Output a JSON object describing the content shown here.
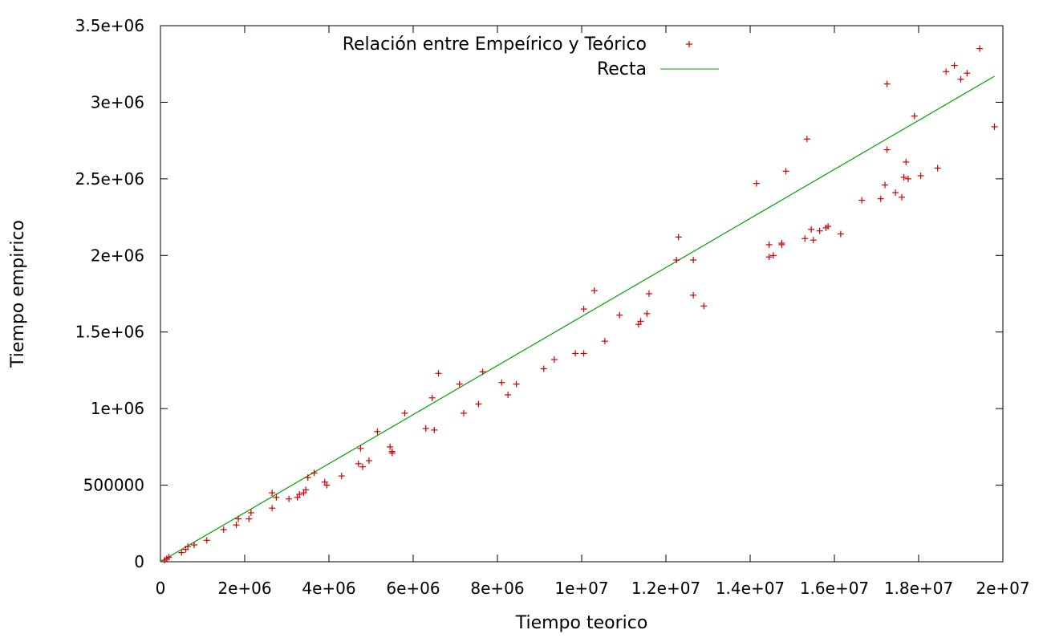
{
  "chart_data": {
    "type": "scatter",
    "xlabel": "Tiempo teorico",
    "ylabel": "Tiempo empirico",
    "xlim": [
      0,
      20000000
    ],
    "ylim": [
      0,
      3500000
    ],
    "x_ticks": [
      0,
      2000000,
      4000000,
      6000000,
      8000000,
      10000000,
      12000000,
      14000000,
      16000000,
      18000000,
      20000000
    ],
    "x_tick_labels": [
      "0",
      "2e+06",
      "4e+06",
      "6e+06",
      "8e+06",
      "1e+07",
      "1.2e+07",
      "1.4e+07",
      "1.6e+07",
      "1.8e+07",
      "2e+07"
    ],
    "y_ticks": [
      0,
      500000,
      1000000,
      1500000,
      2000000,
      2500000,
      3000000,
      3500000
    ],
    "y_tick_labels": [
      "0",
      "500000",
      "1e+06",
      "1.5e+06",
      "2e+06",
      "2.5e+06",
      "3e+06",
      "3.5e+06"
    ],
    "grid": false,
    "legend_position": "top-right",
    "series": [
      {
        "name": "Relación entre Empeírico y Teórico",
        "kind": "points",
        "color": "#cc0000",
        "points": [
          [
            100000,
            10000
          ],
          [
            150000,
            20000
          ],
          [
            200000,
            30000
          ],
          [
            500000,
            60000
          ],
          [
            600000,
            80000
          ],
          [
            650000,
            100000
          ],
          [
            800000,
            110000
          ],
          [
            1100000,
            140000
          ],
          [
            1500000,
            210000
          ],
          [
            1800000,
            240000
          ],
          [
            1850000,
            280000
          ],
          [
            2100000,
            280000
          ],
          [
            2150000,
            320000
          ],
          [
            2650000,
            350000
          ],
          [
            2650000,
            450000
          ],
          [
            2750000,
            420000
          ],
          [
            3050000,
            410000
          ],
          [
            3250000,
            420000
          ],
          [
            3300000,
            440000
          ],
          [
            3400000,
            450000
          ],
          [
            3450000,
            470000
          ],
          [
            3500000,
            550000
          ],
          [
            3650000,
            580000
          ],
          [
            3900000,
            520000
          ],
          [
            3950000,
            500000
          ],
          [
            4300000,
            560000
          ],
          [
            4700000,
            640000
          ],
          [
            4750000,
            740000
          ],
          [
            4800000,
            620000
          ],
          [
            4950000,
            660000
          ],
          [
            5150000,
            850000
          ],
          [
            5450000,
            750000
          ],
          [
            5500000,
            710000
          ],
          [
            5500000,
            720000
          ],
          [
            5800000,
            970000
          ],
          [
            6300000,
            870000
          ],
          [
            6450000,
            1070000
          ],
          [
            6500000,
            860000
          ],
          [
            6600000,
            1230000
          ],
          [
            7100000,
            1160000
          ],
          [
            7200000,
            970000
          ],
          [
            7550000,
            1030000
          ],
          [
            7650000,
            1240000
          ],
          [
            8100000,
            1170000
          ],
          [
            8250000,
            1090000
          ],
          [
            8450000,
            1160000
          ],
          [
            9100000,
            1260000
          ],
          [
            9350000,
            1320000
          ],
          [
            9850000,
            1360000
          ],
          [
            10050000,
            1360000
          ],
          [
            10050000,
            1650000
          ],
          [
            10300000,
            1770000
          ],
          [
            10550000,
            1440000
          ],
          [
            10900000,
            1610000
          ],
          [
            11350000,
            1550000
          ],
          [
            11400000,
            1570000
          ],
          [
            11550000,
            1620000
          ],
          [
            11600000,
            1750000
          ],
          [
            12250000,
            1970000
          ],
          [
            12300000,
            2120000
          ],
          [
            12650000,
            1970000
          ],
          [
            12650000,
            1740000
          ],
          [
            12900000,
            1670000
          ],
          [
            14150000,
            2470000
          ],
          [
            14450000,
            2070000
          ],
          [
            14450000,
            1990000
          ],
          [
            14550000,
            2000000
          ],
          [
            14750000,
            2070000
          ],
          [
            14750000,
            2080000
          ],
          [
            14850000,
            2550000
          ],
          [
            15300000,
            2110000
          ],
          [
            15350000,
            2760000
          ],
          [
            15450000,
            2170000
          ],
          [
            15500000,
            2100000
          ],
          [
            15650000,
            2160000
          ],
          [
            15800000,
            2180000
          ],
          [
            15850000,
            2190000
          ],
          [
            16150000,
            2140000
          ],
          [
            16650000,
            2360000
          ],
          [
            17100000,
            2370000
          ],
          [
            17200000,
            2460000
          ],
          [
            17250000,
            2690000
          ],
          [
            17250000,
            3120000
          ],
          [
            17450000,
            2410000
          ],
          [
            17600000,
            2380000
          ],
          [
            17650000,
            2510000
          ],
          [
            17700000,
            2610000
          ],
          [
            17750000,
            2500000
          ],
          [
            17900000,
            2910000
          ],
          [
            18050000,
            2520000
          ],
          [
            18450000,
            2570000
          ],
          [
            18650000,
            3200000
          ],
          [
            18850000,
            3240000
          ],
          [
            19000000,
            3150000
          ],
          [
            19150000,
            3190000
          ],
          [
            19450000,
            3350000
          ],
          [
            19800000,
            2840000
          ]
        ]
      },
      {
        "name": "Recta",
        "kind": "line",
        "color": "#00a000",
        "points": [
          [
            0,
            0
          ],
          [
            19800000,
            3170000
          ]
        ]
      }
    ]
  }
}
